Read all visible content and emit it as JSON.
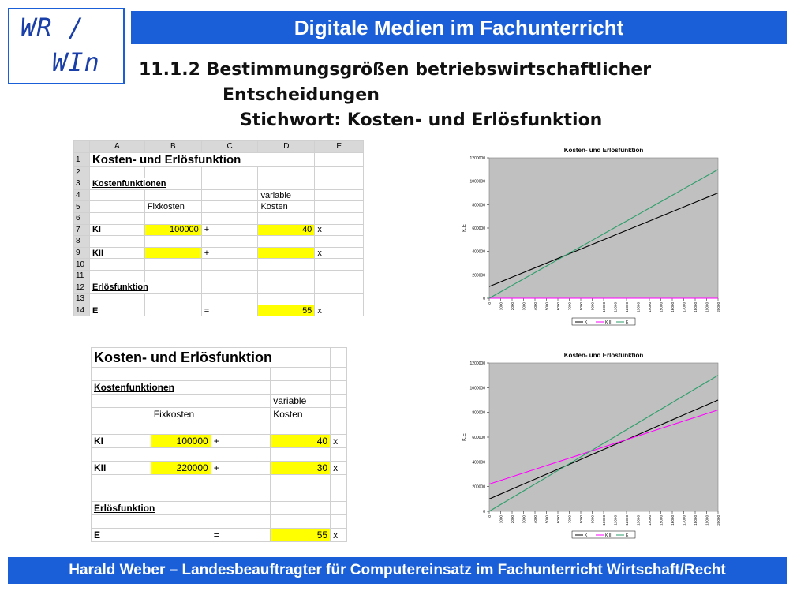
{
  "logo": {
    "line1": "WR /",
    "line2": "WIn"
  },
  "header": {
    "title": "Digitale Medien im Fachunterricht"
  },
  "heading": {
    "line1": "11.1.2 Bestimmungsgrößen betriebswirtschaftlicher",
    "line2": "Entscheidungen",
    "line3": "Stichwort: Kosten- und Erlösfunktion"
  },
  "spreadsheet1": {
    "columns": [
      "A",
      "B",
      "C",
      "D",
      "E"
    ],
    "rows": [
      "1",
      "2",
      "3",
      "4",
      "5",
      "6",
      "7",
      "8",
      "9",
      "10",
      "11",
      "12",
      "13",
      "14"
    ],
    "title": "Kosten- und Erlösfunktion",
    "kosten_header": "Kostenfunktionen",
    "variable": "variable",
    "fixkosten": "Fixkosten",
    "kosten": "Kosten",
    "ki": "KI",
    "kii": "KII",
    "ki_fix": "100000",
    "ki_var": "40",
    "plus": "+",
    "x": "x",
    "erloes_header": "Erlösfunktion",
    "e": "E",
    "eq": "=",
    "e_price": "55"
  },
  "spreadsheet2": {
    "title": "Kosten- und Erlösfunktion",
    "kosten_header": "Kostenfunktionen",
    "variable": "variable",
    "fixkosten": "Fixkosten",
    "kosten": "Kosten",
    "ki": "KI",
    "kii": "KII",
    "ki_fix": "100000",
    "ki_var": "40",
    "kii_fix": "220000",
    "kii_var": "30",
    "plus": "+",
    "x": "x",
    "erloes_header": "Erlösfunktion",
    "e": "E",
    "eq": "=",
    "e_price": "55"
  },
  "chart_data": [
    {
      "type": "line",
      "title": "Kosten- und Erlösfunktion",
      "xlabel": "",
      "ylabel": "K,E",
      "x": [
        0,
        1000,
        2000,
        3000,
        4000,
        5000,
        6000,
        7000,
        8000,
        9000,
        10000,
        11000,
        12000,
        13000,
        14000,
        15000,
        16000,
        17000,
        18000,
        19000,
        20000
      ],
      "x_tick_labels": [
        "0",
        "1000",
        "2000",
        "3000",
        "4000",
        "5000",
        "6000",
        "7000",
        "8000",
        "9000",
        "10000",
        "11000",
        "12000",
        "13000",
        "14000",
        "15000",
        "16000",
        "17000",
        "18000",
        "19000",
        "20000"
      ],
      "ylim": [
        0,
        1200000
      ],
      "y_ticks": [
        0,
        200000,
        400000,
        600000,
        800000,
        1000000,
        1200000
      ],
      "series": [
        {
          "name": "K I",
          "color": "#000000",
          "intercept": 100000,
          "slope": 40
        },
        {
          "name": "K II",
          "color": "#ff00ff",
          "intercept": 0,
          "slope": 0
        },
        {
          "name": "E",
          "color": "#2e9e6b",
          "intercept": 0,
          "slope": 55
        }
      ],
      "legend_position": "bottom",
      "grid": false,
      "plot_bg": "#c0c0c0"
    },
    {
      "type": "line",
      "title": "Kosten- und Erlösfunktion",
      "xlabel": "",
      "ylabel": "K,E",
      "x": [
        0,
        1000,
        2000,
        3000,
        4000,
        5000,
        6000,
        7000,
        8000,
        9000,
        10000,
        11000,
        12000,
        13000,
        14000,
        15000,
        16000,
        17000,
        18000,
        19000,
        20000
      ],
      "x_tick_labels": [
        "0",
        "1000",
        "2000",
        "3000",
        "4000",
        "5000",
        "6000",
        "7000",
        "8000",
        "9000",
        "10000",
        "11000",
        "12000",
        "13000",
        "14000",
        "15000",
        "16000",
        "17000",
        "18000",
        "19000",
        "20000"
      ],
      "ylim": [
        0,
        1200000
      ],
      "y_ticks": [
        0,
        200000,
        400000,
        600000,
        800000,
        1000000,
        1200000
      ],
      "series": [
        {
          "name": "K I",
          "color": "#000000",
          "intercept": 100000,
          "slope": 40
        },
        {
          "name": "K II",
          "color": "#ff00ff",
          "intercept": 220000,
          "slope": 30
        },
        {
          "name": "E",
          "color": "#2e9e6b",
          "intercept": 0,
          "slope": 55
        }
      ],
      "legend_position": "bottom",
      "grid": false,
      "plot_bg": "#c0c0c0"
    }
  ],
  "footer": {
    "text": "Harald Weber – Landesbeauftragter für Computereinsatz im Fachunterricht Wirtschaft/Recht"
  }
}
